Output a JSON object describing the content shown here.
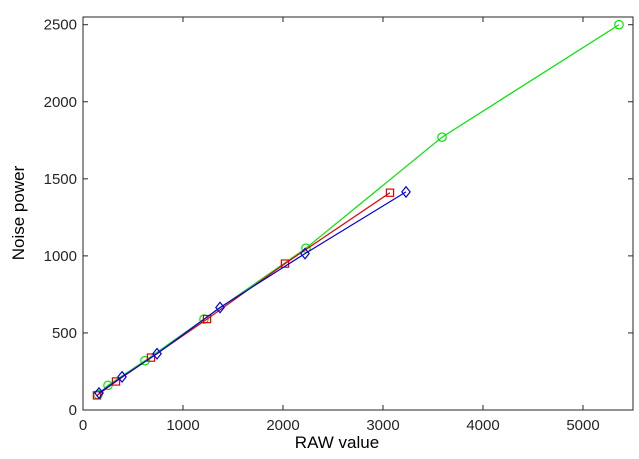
{
  "chart_data": {
    "type": "line",
    "title": "",
    "xlabel": "RAW value",
    "ylabel": "Noise power",
    "xlim": [
      0,
      5500
    ],
    "ylim": [
      0,
      2550
    ],
    "xticks": [
      0,
      1000,
      2000,
      3000,
      4000,
      5000
    ],
    "yticks": [
      0,
      500,
      1000,
      1500,
      2000,
      2500
    ],
    "xtick_labels": [
      "0",
      "1000",
      "2000",
      "3000",
      "4000",
      "5000"
    ],
    "ytick_labels": [
      "0",
      "500",
      "1000",
      "1500",
      "2000",
      "2500"
    ],
    "grid": false,
    "legend": "none",
    "series": [
      {
        "color": "#00e600",
        "marker": "circle",
        "points": [
          [
            150,
            100
          ],
          [
            250,
            160
          ],
          [
            620,
            320
          ],
          [
            1210,
            590
          ],
          [
            2230,
            1050
          ],
          [
            3590,
            1770
          ],
          [
            5360,
            2500
          ]
        ]
      },
      {
        "color": "#e60000",
        "marker": "square",
        "points": [
          [
            140,
            95
          ],
          [
            330,
            185
          ],
          [
            680,
            340
          ],
          [
            1240,
            590
          ],
          [
            2020,
            950
          ],
          [
            3070,
            1410
          ]
        ]
      },
      {
        "color": "#0000e6",
        "marker": "diamond",
        "points": [
          [
            160,
            110
          ],
          [
            390,
            215
          ],
          [
            740,
            365
          ],
          [
            1370,
            665
          ],
          [
            2220,
            1015
          ],
          [
            3230,
            1415
          ]
        ]
      }
    ]
  }
}
